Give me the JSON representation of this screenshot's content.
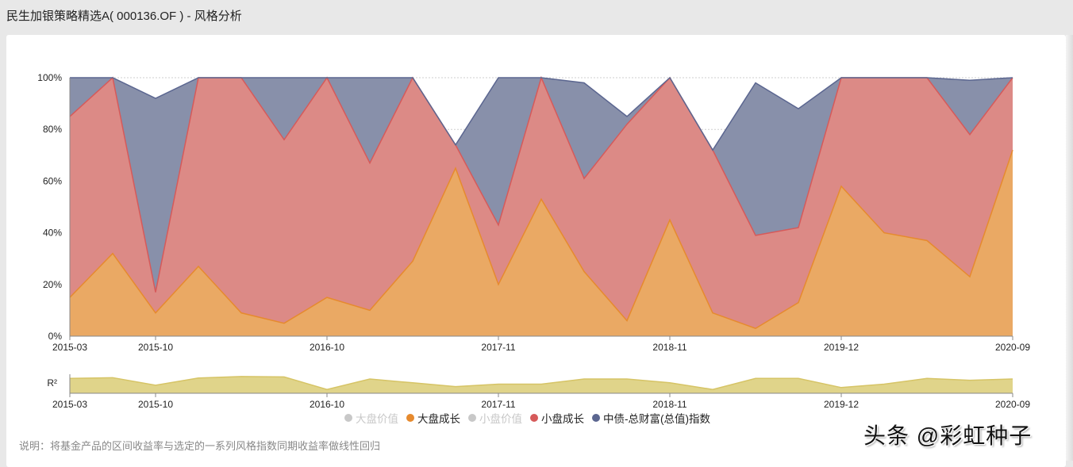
{
  "page": {
    "title": "民生加银策略精选A( 000136.OF ) - 风格分析",
    "note": "说明：将基金产品的区间收益率与选定的一系列风格指数同期收益率做线性回归",
    "watermark": "头条 @彩虹种子"
  },
  "legend": [
    {
      "label": "大盘价值",
      "color": "#c8c8c8",
      "active": false
    },
    {
      "label": "大盘成长",
      "color": "#e68a2e",
      "active": true
    },
    {
      "label": "小盘价值",
      "color": "#c8c8c8",
      "active": false
    },
    {
      "label": "小盘成长",
      "color": "#d65a5a",
      "active": true
    },
    {
      "label": "中债-总财富(总值)指数",
      "color": "#5b6690",
      "active": true
    }
  ],
  "colors": {
    "large_growth_fill": "#eaa964",
    "large_growth_line": "#e68a2e",
    "small_growth_fill": "#dc8a86",
    "small_growth_line": "#d65a5a",
    "bond_fill": "#8890aa",
    "bond_line": "#5b6690",
    "r2_fill": "#e0d48a",
    "r2_line": "#d6c466"
  },
  "chart_data": [
    {
      "type": "area",
      "stacked": true,
      "title": "风格分析",
      "xlabel": "",
      "ylabel": "",
      "ylim": [
        0,
        100
      ],
      "y_ticks": [
        "0%",
        "20%",
        "40%",
        "60%",
        "80%",
        "100%"
      ],
      "x_tick_labels": [
        "2015-03",
        "2015-10",
        "2016-10",
        "2017-11",
        "2018-11",
        "2019-12",
        "2020-09"
      ],
      "x_tick_indices": [
        0,
        2,
        6,
        10,
        14,
        18,
        22
      ],
      "grid": true,
      "legend_position": "bottom",
      "point_count": 23,
      "series": [
        {
          "name": "大盘价值",
          "visible": false,
          "values": []
        },
        {
          "name": "大盘成长",
          "visible": true,
          "values": [
            15,
            32,
            9,
            27,
            9,
            5,
            15,
            10,
            29,
            65,
            20,
            53,
            25,
            6,
            45,
            9,
            3,
            13,
            58,
            40,
            37,
            23,
            72
          ]
        },
        {
          "name": "小盘价值",
          "visible": false,
          "values": []
        },
        {
          "name": "小盘成长",
          "visible": true,
          "values": [
            70,
            68,
            8,
            73,
            91,
            71,
            85,
            57,
            71,
            9,
            23,
            47,
            36,
            76,
            55,
            63,
            36,
            29,
            42,
            60,
            63,
            55,
            28
          ]
        },
        {
          "name": "中债-总财富(总值)指数",
          "visible": true,
          "values": [
            15,
            0,
            75,
            0,
            0,
            24,
            0,
            33,
            0,
            0,
            57,
            0,
            37,
            3,
            0,
            0,
            59,
            46,
            0,
            0,
            0,
            21,
            0
          ]
        }
      ]
    },
    {
      "type": "area",
      "title": "R²",
      "ylabel": "R²",
      "ylim": [
        0,
        1
      ],
      "x_tick_labels": [
        "2015-03",
        "2015-10",
        "2016-10",
        "2017-11",
        "2018-11",
        "2019-12",
        "2020-09"
      ],
      "x_tick_indices": [
        0,
        2,
        6,
        10,
        14,
        18,
        22
      ],
      "values": [
        0.78,
        0.82,
        0.42,
        0.8,
        0.88,
        0.86,
        0.2,
        0.75,
        0.55,
        0.35,
        0.48,
        0.48,
        0.75,
        0.75,
        0.55,
        0.2,
        0.78,
        0.78,
        0.3,
        0.48,
        0.78,
        0.68,
        0.75
      ]
    }
  ]
}
